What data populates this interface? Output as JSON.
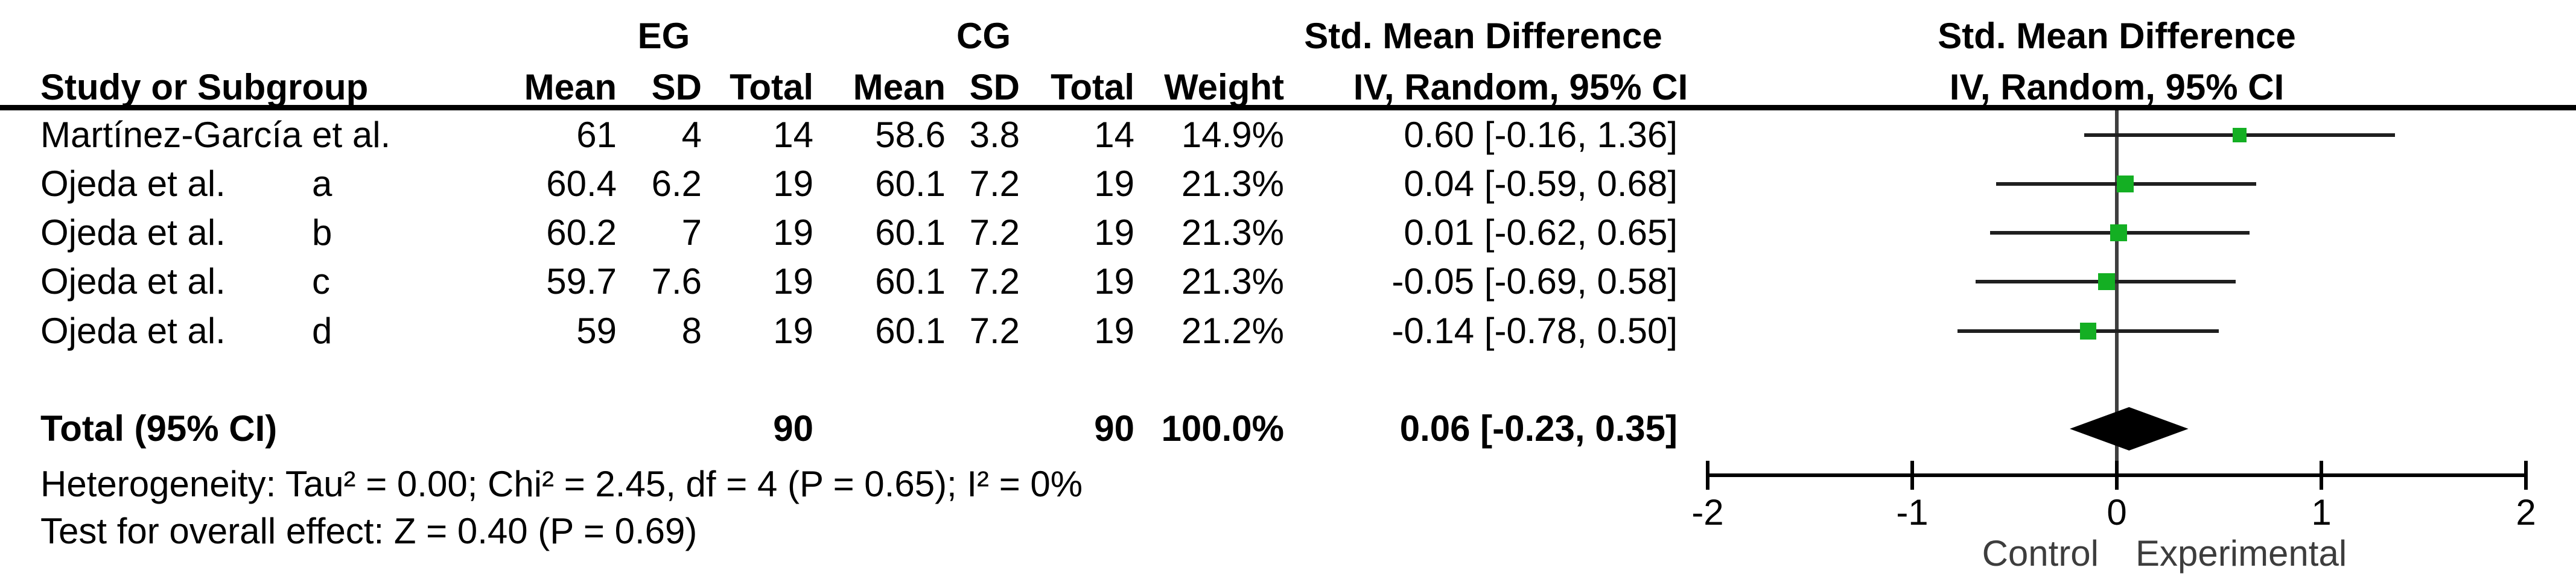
{
  "table": {
    "header": {
      "eg": "EG",
      "cg": "CG",
      "study": "Study or Subgroup",
      "mean": "Mean",
      "sd": "SD",
      "total": "Total",
      "weight": "Weight",
      "smd_title": "Std. Mean Difference",
      "iv_title": "IV, Random, 95% CI"
    },
    "rows": [
      {
        "study": "Martínez-García et al.",
        "subgroup": "",
        "eg_mean": "61",
        "eg_sd": "4",
        "eg_total": "14",
        "cg_mean": "58.6",
        "cg_sd": "3.8",
        "cg_total": "14",
        "weight": "14.9%",
        "ci": "0.60 [-0.16, 1.36]"
      },
      {
        "study": "Ojeda et al.",
        "subgroup": "a",
        "eg_mean": "60.4",
        "eg_sd": "6.2",
        "eg_total": "19",
        "cg_mean": "60.1",
        "cg_sd": "7.2",
        "cg_total": "19",
        "weight": "21.3%",
        "ci": "0.04 [-0.59, 0.68]"
      },
      {
        "study": "Ojeda et al.",
        "subgroup": "b",
        "eg_mean": "60.2",
        "eg_sd": "7",
        "eg_total": "19",
        "cg_mean": "60.1",
        "cg_sd": "7.2",
        "cg_total": "19",
        "weight": "21.3%",
        "ci": "0.01 [-0.62, 0.65]"
      },
      {
        "study": "Ojeda et al.",
        "subgroup": "c",
        "eg_mean": "59.7",
        "eg_sd": "7.6",
        "eg_total": "19",
        "cg_mean": "60.1",
        "cg_sd": "7.2",
        "cg_total": "19",
        "weight": "21.3%",
        "ci": "-0.05 [-0.69, 0.58]"
      },
      {
        "study": "Ojeda et al.",
        "subgroup": "d",
        "eg_mean": "59",
        "eg_sd": "8",
        "eg_total": "19",
        "cg_mean": "60.1",
        "cg_sd": "7.2",
        "cg_total": "19",
        "weight": "21.2%",
        "ci": "-0.14 [-0.78, 0.50]"
      }
    ],
    "total_row": {
      "label": "Total (95% CI)",
      "eg_total": "90",
      "cg_total": "90",
      "weight": "100.0%",
      "ci": "0.06 [-0.23, 0.35]"
    },
    "footnotes": {
      "heterogeneity": "Heterogeneity: Tau² = 0.00; Chi² = 2.45, df = 4 (P = 0.65); I² = 0%",
      "overall_effect": "Test for overall effect: Z = 0.40 (P = 0.69)"
    }
  },
  "chart_data": {
    "type": "forest",
    "title": "Std. Mean Difference",
    "subtitle": "IV, Random, 95% CI",
    "x_axis": {
      "min": -2,
      "max": 2,
      "ticks": [
        -2,
        -1,
        0,
        1,
        2
      ],
      "label_left": "Control",
      "label_right": "Experimental"
    },
    "studies": [
      {
        "name": "Martínez-García et al.",
        "subgroup": "",
        "smd": 0.6,
        "ci_low": -0.16,
        "ci_high": 1.36,
        "weight_pct": 14.9
      },
      {
        "name": "Ojeda et al.",
        "subgroup": "a",
        "smd": 0.04,
        "ci_low": -0.59,
        "ci_high": 0.68,
        "weight_pct": 21.3
      },
      {
        "name": "Ojeda et al.",
        "subgroup": "b",
        "smd": 0.01,
        "ci_low": -0.62,
        "ci_high": 0.65,
        "weight_pct": 21.3
      },
      {
        "name": "Ojeda et al.",
        "subgroup": "c",
        "smd": -0.05,
        "ci_low": -0.69,
        "ci_high": 0.58,
        "weight_pct": 21.3
      },
      {
        "name": "Ojeda et al.",
        "subgroup": "d",
        "smd": -0.14,
        "ci_low": -0.78,
        "ci_high": 0.5,
        "weight_pct": 21.2
      }
    ],
    "total": {
      "smd": 0.06,
      "ci_low": -0.23,
      "ci_high": 0.35,
      "weight_pct": 100.0
    },
    "marker_color": "#14AF23",
    "summary_color": "#000000",
    "legend": "none",
    "grid": false
  }
}
